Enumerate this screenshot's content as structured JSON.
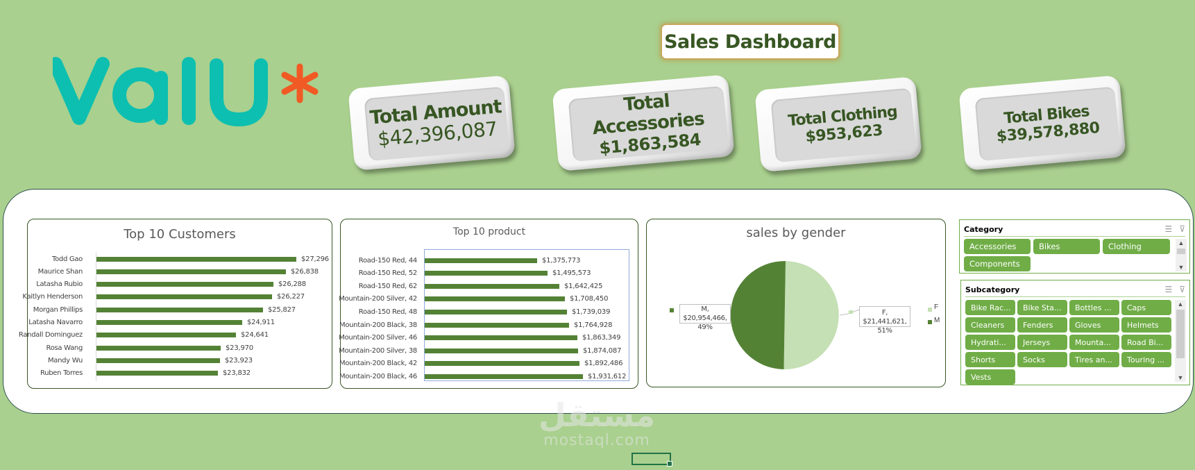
{
  "header": {
    "title": "Sales Dashboard",
    "logo": {
      "text": "valu",
      "mark": "*",
      "text_color": "#0cbfb0",
      "mark_color": "#f15a24"
    }
  },
  "kpis": [
    {
      "label": "Total Amount",
      "value": "$42,396,087"
    },
    {
      "label": "Total Accessories",
      "value": "$1,863,584"
    },
    {
      "label": "Total Clothing",
      "value": "$953,623"
    },
    {
      "label": "Total Bikes",
      "value": "$39,578,880"
    }
  ],
  "colors": {
    "background": "#a9d08e",
    "bar": "#548235",
    "pie_m": "#548235",
    "pie_f": "#c5e0b4",
    "chip": "#70ad47",
    "title_text": "#375623"
  },
  "customers": {
    "title": "Top 10 Customers",
    "items": [
      {
        "name": "Todd Gao",
        "value": "$27,296"
      },
      {
        "name": "Maurice Shan",
        "value": "$26,838"
      },
      {
        "name": "Latasha Rubio",
        "value": "$26,288"
      },
      {
        "name": "Kaitlyn Henderson",
        "value": "$26,227"
      },
      {
        "name": "Morgan Phillips",
        "value": "$25,827"
      },
      {
        "name": "Latasha Navarro",
        "value": "$24,911"
      },
      {
        "name": "Randall Dominguez",
        "value": "$24,641"
      },
      {
        "name": "Rosa Wang",
        "value": "$23,970"
      },
      {
        "name": "Mandy Wu",
        "value": "$23,923"
      },
      {
        "name": "Ruben Torres",
        "value": "$23,832"
      }
    ]
  },
  "products": {
    "title": "Top 10 product",
    "items": [
      {
        "name": "Road-150 Red, 44",
        "value": "$1,375,773"
      },
      {
        "name": "Road-150 Red, 52",
        "value": "$1,495,573"
      },
      {
        "name": "Road-150 Red, 62",
        "value": "$1,642,425"
      },
      {
        "name": "Mountain-200 Silver, 42",
        "value": "$1,708,450"
      },
      {
        "name": "Road-150 Red, 48",
        "value": "$1,739,039"
      },
      {
        "name": "Mountain-200 Black, 38",
        "value": "$1,764,928"
      },
      {
        "name": "Mountain-200 Silver, 46",
        "value": "$1,863,349"
      },
      {
        "name": "Mountain-200 Silver, 38",
        "value": "$1,874,087"
      },
      {
        "name": "Mountain-200 Black, 42",
        "value": "$1,892,486"
      },
      {
        "name": "Mountain-200 Black, 46",
        "value": "$1,931,612"
      }
    ]
  },
  "gender": {
    "title": "sales by gender",
    "m_label_line1": "M, $20,954,466,",
    "m_label_line2": "49%",
    "f_label_line1": "F, $21,441,621,",
    "f_label_line2": "51%",
    "legend": [
      "F",
      "M"
    ]
  },
  "chart_data": [
    {
      "type": "bar",
      "title": "Top 10 Customers",
      "orientation": "horizontal",
      "categories": [
        "Todd Gao",
        "Maurice Shan",
        "Latasha Rubio",
        "Kaitlyn Henderson",
        "Morgan Phillips",
        "Latasha Navarro",
        "Randall Dominguez",
        "Rosa Wang",
        "Mandy Wu",
        "Ruben Torres"
      ],
      "values": [
        27296,
        26838,
        26288,
        26227,
        25827,
        24911,
        24641,
        23970,
        23923,
        23832
      ],
      "xlabel": "",
      "ylabel": "",
      "grid": false,
      "legend": "none"
    },
    {
      "type": "bar",
      "title": "Top 10 product",
      "orientation": "horizontal",
      "categories": [
        "Road-150 Red, 44",
        "Road-150 Red, 52",
        "Road-150 Red, 62",
        "Mountain-200 Silver, 42",
        "Road-150 Red, 48",
        "Mountain-200 Black, 38",
        "Mountain-200 Silver, 46",
        "Mountain-200 Silver, 38",
        "Mountain-200 Black, 42",
        "Mountain-200 Black, 46"
      ],
      "values": [
        1375773,
        1495573,
        1642425,
        1708450,
        1739039,
        1764928,
        1863349,
        1874087,
        1892486,
        1931612
      ],
      "xlabel": "",
      "ylabel": "",
      "grid": false,
      "legend": "none"
    },
    {
      "type": "pie",
      "title": "sales by gender",
      "categories": [
        "F",
        "M"
      ],
      "values": [
        21441621,
        20954466
      ],
      "percentages": [
        51,
        49
      ],
      "legend": "right"
    }
  ],
  "slicers": {
    "category": {
      "title": "Category",
      "items": [
        "Accessories",
        "Bikes",
        "Clothing",
        "Components"
      ]
    },
    "subcategory": {
      "title": "Subcategory",
      "items": [
        "Bike Rac...",
        "Bike Sta...",
        "Bottles ...",
        "Caps",
        "Cleaners",
        "Fenders",
        "Gloves",
        "Helmets",
        "Hydrati...",
        "Jerseys",
        "Mounta...",
        "Road Bi...",
        "Shorts",
        "Socks",
        "Tires an...",
        "Touring ...",
        "Vests"
      ]
    },
    "multiselect_icon": "multi-select-icon",
    "clear_filter_icon": "clear-filter-icon"
  },
  "watermark": {
    "arabic": "مستقل",
    "latin": "mostaql.com"
  }
}
